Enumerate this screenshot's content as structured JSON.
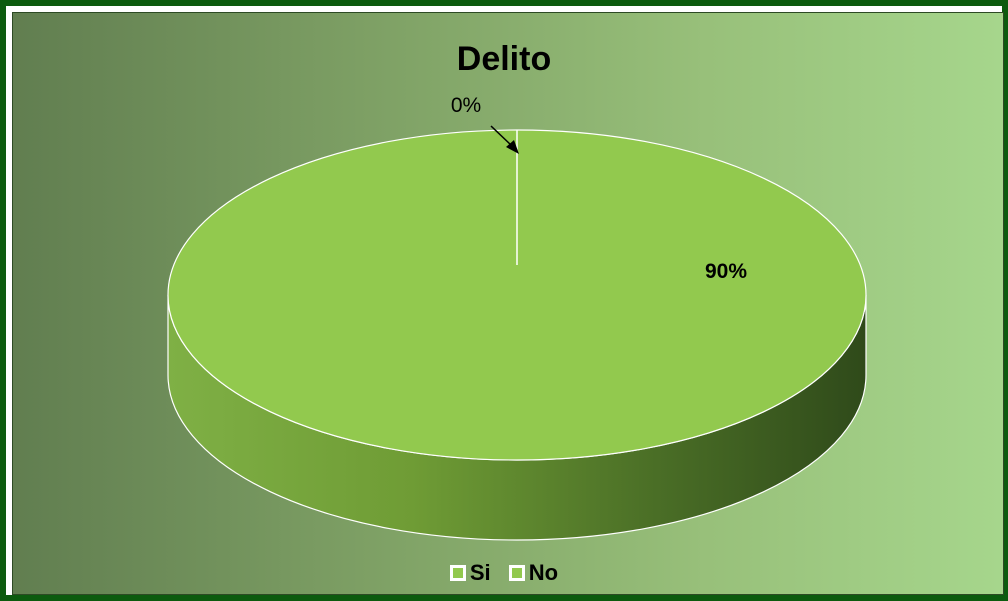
{
  "chart_data": {
    "type": "pie",
    "title": "Delito",
    "categories": [
      "Si",
      "No"
    ],
    "values": [
      90,
      0
    ],
    "data_labels": [
      "90%",
      "0%"
    ],
    "colors": [
      "#92c94e",
      "#92c94e"
    ],
    "legend_position": "bottom",
    "style": "3d"
  }
}
